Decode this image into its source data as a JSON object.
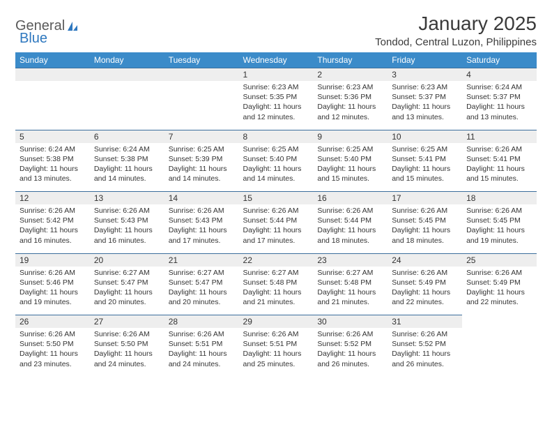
{
  "logo": {
    "text1": "General",
    "text2": "Blue"
  },
  "title": "January 2025",
  "location": "Tondod, Central Luzon, Philippines",
  "colors": {
    "header_bg": "#3b8bc9",
    "header_text": "#ffffff",
    "daynum_bg": "#eeeeee",
    "divider": "#3b6e9c",
    "body_text": "#333333",
    "logo_blue": "#2f78bf"
  },
  "day_headers": [
    "Sunday",
    "Monday",
    "Tuesday",
    "Wednesday",
    "Thursday",
    "Friday",
    "Saturday"
  ],
  "weeks": [
    [
      null,
      null,
      null,
      {
        "n": "1",
        "sr": "Sunrise: 6:23 AM",
        "ss": "Sunset: 5:35 PM",
        "d1": "Daylight: 11 hours",
        "d2": "and 12 minutes."
      },
      {
        "n": "2",
        "sr": "Sunrise: 6:23 AM",
        "ss": "Sunset: 5:36 PM",
        "d1": "Daylight: 11 hours",
        "d2": "and 12 minutes."
      },
      {
        "n": "3",
        "sr": "Sunrise: 6:23 AM",
        "ss": "Sunset: 5:37 PM",
        "d1": "Daylight: 11 hours",
        "d2": "and 13 minutes."
      },
      {
        "n": "4",
        "sr": "Sunrise: 6:24 AM",
        "ss": "Sunset: 5:37 PM",
        "d1": "Daylight: 11 hours",
        "d2": "and 13 minutes."
      }
    ],
    [
      {
        "n": "5",
        "sr": "Sunrise: 6:24 AM",
        "ss": "Sunset: 5:38 PM",
        "d1": "Daylight: 11 hours",
        "d2": "and 13 minutes."
      },
      {
        "n": "6",
        "sr": "Sunrise: 6:24 AM",
        "ss": "Sunset: 5:38 PM",
        "d1": "Daylight: 11 hours",
        "d2": "and 14 minutes."
      },
      {
        "n": "7",
        "sr": "Sunrise: 6:25 AM",
        "ss": "Sunset: 5:39 PM",
        "d1": "Daylight: 11 hours",
        "d2": "and 14 minutes."
      },
      {
        "n": "8",
        "sr": "Sunrise: 6:25 AM",
        "ss": "Sunset: 5:40 PM",
        "d1": "Daylight: 11 hours",
        "d2": "and 14 minutes."
      },
      {
        "n": "9",
        "sr": "Sunrise: 6:25 AM",
        "ss": "Sunset: 5:40 PM",
        "d1": "Daylight: 11 hours",
        "d2": "and 15 minutes."
      },
      {
        "n": "10",
        "sr": "Sunrise: 6:25 AM",
        "ss": "Sunset: 5:41 PM",
        "d1": "Daylight: 11 hours",
        "d2": "and 15 minutes."
      },
      {
        "n": "11",
        "sr": "Sunrise: 6:26 AM",
        "ss": "Sunset: 5:41 PM",
        "d1": "Daylight: 11 hours",
        "d2": "and 15 minutes."
      }
    ],
    [
      {
        "n": "12",
        "sr": "Sunrise: 6:26 AM",
        "ss": "Sunset: 5:42 PM",
        "d1": "Daylight: 11 hours",
        "d2": "and 16 minutes."
      },
      {
        "n": "13",
        "sr": "Sunrise: 6:26 AM",
        "ss": "Sunset: 5:43 PM",
        "d1": "Daylight: 11 hours",
        "d2": "and 16 minutes."
      },
      {
        "n": "14",
        "sr": "Sunrise: 6:26 AM",
        "ss": "Sunset: 5:43 PM",
        "d1": "Daylight: 11 hours",
        "d2": "and 17 minutes."
      },
      {
        "n": "15",
        "sr": "Sunrise: 6:26 AM",
        "ss": "Sunset: 5:44 PM",
        "d1": "Daylight: 11 hours",
        "d2": "and 17 minutes."
      },
      {
        "n": "16",
        "sr": "Sunrise: 6:26 AM",
        "ss": "Sunset: 5:44 PM",
        "d1": "Daylight: 11 hours",
        "d2": "and 18 minutes."
      },
      {
        "n": "17",
        "sr": "Sunrise: 6:26 AM",
        "ss": "Sunset: 5:45 PM",
        "d1": "Daylight: 11 hours",
        "d2": "and 18 minutes."
      },
      {
        "n": "18",
        "sr": "Sunrise: 6:26 AM",
        "ss": "Sunset: 5:45 PM",
        "d1": "Daylight: 11 hours",
        "d2": "and 19 minutes."
      }
    ],
    [
      {
        "n": "19",
        "sr": "Sunrise: 6:26 AM",
        "ss": "Sunset: 5:46 PM",
        "d1": "Daylight: 11 hours",
        "d2": "and 19 minutes."
      },
      {
        "n": "20",
        "sr": "Sunrise: 6:27 AM",
        "ss": "Sunset: 5:47 PM",
        "d1": "Daylight: 11 hours",
        "d2": "and 20 minutes."
      },
      {
        "n": "21",
        "sr": "Sunrise: 6:27 AM",
        "ss": "Sunset: 5:47 PM",
        "d1": "Daylight: 11 hours",
        "d2": "and 20 minutes."
      },
      {
        "n": "22",
        "sr": "Sunrise: 6:27 AM",
        "ss": "Sunset: 5:48 PM",
        "d1": "Daylight: 11 hours",
        "d2": "and 21 minutes."
      },
      {
        "n": "23",
        "sr": "Sunrise: 6:27 AM",
        "ss": "Sunset: 5:48 PM",
        "d1": "Daylight: 11 hours",
        "d2": "and 21 minutes."
      },
      {
        "n": "24",
        "sr": "Sunrise: 6:26 AM",
        "ss": "Sunset: 5:49 PM",
        "d1": "Daylight: 11 hours",
        "d2": "and 22 minutes."
      },
      {
        "n": "25",
        "sr": "Sunrise: 6:26 AM",
        "ss": "Sunset: 5:49 PM",
        "d1": "Daylight: 11 hours",
        "d2": "and 22 minutes."
      }
    ],
    [
      {
        "n": "26",
        "sr": "Sunrise: 6:26 AM",
        "ss": "Sunset: 5:50 PM",
        "d1": "Daylight: 11 hours",
        "d2": "and 23 minutes."
      },
      {
        "n": "27",
        "sr": "Sunrise: 6:26 AM",
        "ss": "Sunset: 5:50 PM",
        "d1": "Daylight: 11 hours",
        "d2": "and 24 minutes."
      },
      {
        "n": "28",
        "sr": "Sunrise: 6:26 AM",
        "ss": "Sunset: 5:51 PM",
        "d1": "Daylight: 11 hours",
        "d2": "and 24 minutes."
      },
      {
        "n": "29",
        "sr": "Sunrise: 6:26 AM",
        "ss": "Sunset: 5:51 PM",
        "d1": "Daylight: 11 hours",
        "d2": "and 25 minutes."
      },
      {
        "n": "30",
        "sr": "Sunrise: 6:26 AM",
        "ss": "Sunset: 5:52 PM",
        "d1": "Daylight: 11 hours",
        "d2": "and 26 minutes."
      },
      {
        "n": "31",
        "sr": "Sunrise: 6:26 AM",
        "ss": "Sunset: 5:52 PM",
        "d1": "Daylight: 11 hours",
        "d2": "and 26 minutes."
      },
      null
    ]
  ]
}
